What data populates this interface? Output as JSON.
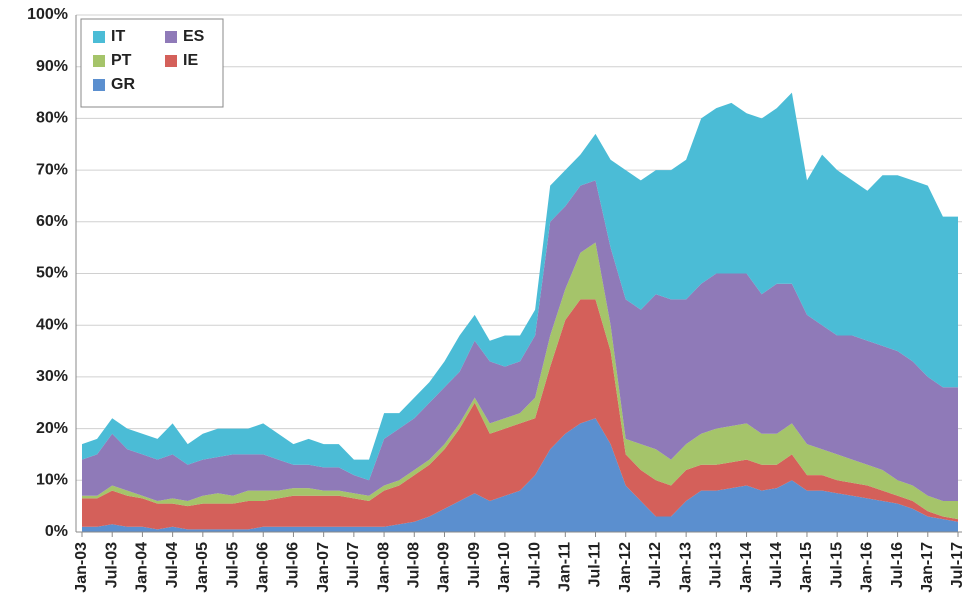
{
  "chart_data": {
    "type": "stacked_area",
    "categories": [
      "Jan-03",
      null,
      "Jul-03",
      null,
      "Jan-04",
      null,
      "Jul-04",
      null,
      "Jan-05",
      null,
      "Jul-05",
      null,
      "Jan-06",
      null,
      "Jul-06",
      null,
      "Jan-07",
      null,
      "Jul-07",
      null,
      "Jan-08",
      null,
      "Jul-08",
      null,
      "Jan-09",
      null,
      "Jul-09",
      null,
      "Jan-10",
      null,
      "Jul-10",
      null,
      "Jan-11",
      null,
      "Jul-11",
      null,
      "Jan-12",
      null,
      "Jul-12",
      null,
      "Jan-13",
      null,
      "Jul-13",
      null,
      "Jan-14",
      null,
      "Jul-14",
      null,
      "Jan-15",
      null,
      "Jul-15",
      null,
      "Jan-16",
      null,
      "Jul-16",
      null,
      "Jan-17",
      null,
      "Jul-17"
    ],
    "series": [
      {
        "name": "GR",
        "color": "#5b8fcf",
        "values": [
          1,
          1,
          1.5,
          1,
          1,
          0.5,
          1,
          0.5,
          0.5,
          0.5,
          0.5,
          0.5,
          1,
          1,
          1,
          1,
          1,
          1,
          1,
          1,
          1,
          1.5,
          2,
          3,
          4.5,
          6,
          7.5,
          6,
          7,
          8,
          11,
          16,
          19,
          21,
          22,
          17,
          9,
          6,
          3,
          3,
          6,
          8,
          8,
          8.5,
          9,
          8,
          8.5,
          10,
          8,
          8,
          7.5,
          7,
          6.5,
          6,
          5.5,
          4.5,
          3,
          2.5,
          2
        ]
      },
      {
        "name": "IE",
        "color": "#d4605a",
        "values": [
          5.5,
          5.5,
          6.5,
          6,
          5.5,
          5,
          4.5,
          4.5,
          5,
          5,
          5,
          5.5,
          5,
          5.5,
          6,
          6,
          6,
          6,
          5.5,
          5,
          7,
          7.5,
          9,
          10,
          11.5,
          14,
          17.5,
          13,
          13,
          13,
          11,
          16,
          22,
          24,
          23,
          18,
          6,
          6,
          7,
          6,
          6,
          5,
          5,
          5,
          5,
          5,
          4.5,
          5,
          3,
          3,
          2.5,
          2.5,
          2.5,
          2,
          1.5,
          1.5,
          1,
          0.5,
          0.5
        ]
      },
      {
        "name": "PT",
        "color": "#a5c46a",
        "values": [
          0.5,
          0.5,
          1,
          1,
          0.5,
          0.5,
          1,
          1,
          1.5,
          2,
          1.5,
          2,
          2,
          1.5,
          1.5,
          1.5,
          1,
          1,
          1,
          1,
          1,
          1,
          1,
          1,
          1,
          1,
          1,
          2,
          2,
          2,
          4,
          6,
          6,
          9,
          11,
          5,
          3,
          5,
          6,
          5,
          5,
          6,
          7,
          7,
          7,
          6,
          6,
          6,
          6,
          5,
          5,
          4.5,
          4,
          4,
          3,
          3,
          3,
          3,
          3.5
        ]
      },
      {
        "name": "ES",
        "color": "#8f7ab8",
        "values": [
          7,
          8,
          10,
          8,
          8,
          8,
          8.5,
          7,
          7,
          7,
          8,
          7,
          7,
          6,
          4.5,
          4.5,
          4.5,
          4.5,
          3.5,
          3,
          9,
          10,
          10,
          11,
          11,
          10,
          11,
          12,
          10,
          10,
          12,
          22,
          16,
          13,
          12,
          15,
          27,
          26,
          30,
          31,
          28,
          29,
          30,
          29.5,
          29,
          27,
          29,
          27,
          25,
          24,
          23,
          24,
          24,
          24,
          25,
          24,
          23,
          22,
          22
        ]
      },
      {
        "name": "IT",
        "color": "#4bbcd6",
        "values": [
          3,
          3,
          3,
          4,
          4,
          4,
          6,
          4,
          5,
          5.5,
          5,
          5,
          6,
          5,
          4,
          5,
          4.5,
          4.5,
          3,
          4,
          5,
          3,
          4,
          4,
          5,
          7,
          5,
          4,
          6,
          5,
          5,
          7,
          7,
          6,
          9,
          17,
          25,
          25,
          24,
          25,
          27,
          32,
          32,
          33,
          31,
          34,
          34,
          37,
          26,
          33,
          32,
          30,
          29,
          33,
          34,
          35,
          37,
          33,
          33
        ]
      }
    ],
    "ylim": [
      0,
      100
    ],
    "yticks": [
      {
        "value": 0,
        "label": "0%"
      },
      {
        "value": 10,
        "label": "10%"
      },
      {
        "value": 20,
        "label": "20%"
      },
      {
        "value": 30,
        "label": "30%"
      },
      {
        "value": 40,
        "label": "40%"
      },
      {
        "value": 50,
        "label": "50%"
      },
      {
        "value": 60,
        "label": "60%"
      },
      {
        "value": 70,
        "label": "70%"
      },
      {
        "value": 80,
        "label": "80%"
      },
      {
        "value": 90,
        "label": "90%"
      },
      {
        "value": 100,
        "label": "100%"
      }
    ],
    "grid": true,
    "legend": "upper left"
  }
}
